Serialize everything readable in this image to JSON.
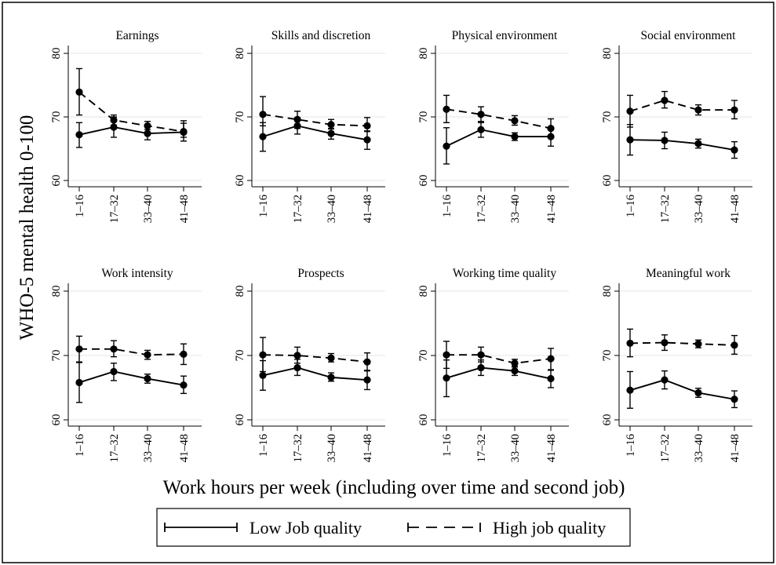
{
  "figure": {
    "ylabel": "WHO-5 mental health 0-100",
    "xlabel": "Work hours per week (including over time and second job)",
    "legend": [
      {
        "name": "Low Job quality",
        "style": "solid"
      },
      {
        "name": "High job quality",
        "style": "dashed"
      }
    ]
  },
  "chart_data": [
    {
      "type": "line",
      "title": "Earnings",
      "categories": [
        "1–16",
        "17–32",
        "33–40",
        "41–48"
      ],
      "ylim": [
        60,
        80
      ],
      "yticks": [
        "60",
        "70",
        "80"
      ],
      "series": [
        {
          "name": "Low Job quality",
          "values": [
            67.2,
            68.4,
            67.4,
            67.6
          ],
          "ci_low": [
            65.2,
            66.8,
            66.4,
            66.2
          ],
          "ci_high": [
            69.1,
            70.0,
            68.5,
            69.0
          ]
        },
        {
          "name": "High job quality",
          "values": [
            73.9,
            69.5,
            68.6,
            67.7
          ],
          "ci_low": [
            70.3,
            68.7,
            68.0,
            66.8
          ],
          "ci_high": [
            77.6,
            70.3,
            69.3,
            69.4
          ]
        }
      ]
    },
    {
      "type": "line",
      "title": "Skills and discretion",
      "categories": [
        "1–16",
        "17–32",
        "33–40",
        "41–48"
      ],
      "ylim": [
        60,
        80
      ],
      "yticks": [
        "60",
        "70",
        "80"
      ],
      "series": [
        {
          "name": "Low Job quality",
          "values": [
            66.9,
            68.6,
            67.4,
            66.4
          ],
          "ci_low": [
            64.6,
            67.3,
            66.5,
            64.9
          ],
          "ci_high": [
            69.1,
            69.9,
            68.2,
            67.8
          ]
        },
        {
          "name": "High job quality",
          "values": [
            70.4,
            69.6,
            68.8,
            68.6
          ],
          "ci_low": [
            68.6,
            68.2,
            68.1,
            67.7
          ],
          "ci_high": [
            73.2,
            70.9,
            69.6,
            69.9
          ]
        }
      ]
    },
    {
      "type": "line",
      "title": "Physical environment",
      "categories": [
        "1–16",
        "17–32",
        "33–40",
        "41–48"
      ],
      "ylim": [
        60,
        80
      ],
      "yticks": [
        "60",
        "70",
        "80"
      ],
      "series": [
        {
          "name": "Low Job quality",
          "values": [
            65.4,
            68.0,
            66.9,
            66.9
          ],
          "ci_low": [
            62.6,
            66.8,
            66.3,
            65.4
          ],
          "ci_high": [
            68.3,
            69.3,
            67.5,
            68.1
          ]
        },
        {
          "name": "High job quality",
          "values": [
            71.2,
            70.4,
            69.4,
            68.2
          ],
          "ci_low": [
            69.1,
            69.1,
            68.7,
            67.1
          ],
          "ci_high": [
            73.4,
            71.6,
            70.2,
            69.7
          ]
        }
      ]
    },
    {
      "type": "line",
      "title": "Social environment",
      "categories": [
        "1–16",
        "17–32",
        "33–40",
        "41–48"
      ],
      "ylim": [
        60,
        80
      ],
      "yticks": [
        "60",
        "70",
        "80"
      ],
      "series": [
        {
          "name": "Low Job quality",
          "values": [
            66.4,
            66.3,
            65.8,
            64.8
          ],
          "ci_low": [
            64.0,
            65.0,
            65.1,
            63.5
          ],
          "ci_high": [
            68.8,
            67.6,
            66.5,
            66.1
          ]
        },
        {
          "name": "High job quality",
          "values": [
            70.9,
            72.6,
            71.1,
            71.1
          ],
          "ci_low": [
            68.4,
            71.4,
            70.3,
            69.7
          ],
          "ci_high": [
            73.4,
            74.0,
            71.9,
            72.6
          ]
        }
      ]
    },
    {
      "type": "line",
      "title": "Work intensity",
      "categories": [
        "1–16",
        "17–32",
        "33–40",
        "41–48"
      ],
      "ylim": [
        60,
        80
      ],
      "yticks": [
        "60",
        "70",
        "80"
      ],
      "series": [
        {
          "name": "Low Job quality",
          "values": [
            65.8,
            67.5,
            66.4,
            65.4
          ],
          "ci_low": [
            62.7,
            66.1,
            65.7,
            64.1
          ],
          "ci_high": [
            68.9,
            68.8,
            67.1,
            66.8
          ]
        },
        {
          "name": "High job quality",
          "values": [
            71.0,
            71.0,
            70.1,
            70.2
          ],
          "ci_low": [
            69.0,
            69.8,
            69.4,
            68.6
          ],
          "ci_high": [
            73.0,
            72.3,
            70.8,
            71.8
          ]
        }
      ]
    },
    {
      "type": "line",
      "title": "Prospects",
      "categories": [
        "1–16",
        "17–32",
        "33–40",
        "41–48"
      ],
      "ylim": [
        60,
        80
      ],
      "yticks": [
        "60",
        "70",
        "80"
      ],
      "series": [
        {
          "name": "Low Job quality",
          "values": [
            66.9,
            68.1,
            66.6,
            66.2
          ],
          "ci_low": [
            64.6,
            66.9,
            66.0,
            64.7
          ],
          "ci_high": [
            69.2,
            69.4,
            67.3,
            67.6
          ]
        },
        {
          "name": "High job quality",
          "values": [
            70.1,
            70.0,
            69.6,
            69.0
          ],
          "ci_low": [
            67.5,
            68.8,
            69.0,
            67.7
          ],
          "ci_high": [
            72.8,
            71.3,
            70.3,
            70.4
          ]
        }
      ]
    },
    {
      "type": "line",
      "title": "Working time quality",
      "categories": [
        "1–16",
        "17–32",
        "33–40",
        "41–48"
      ],
      "ylim": [
        60,
        80
      ],
      "yticks": [
        "60",
        "70",
        "80"
      ],
      "series": [
        {
          "name": "Low Job quality",
          "values": [
            66.5,
            68.1,
            67.6,
            66.4
          ],
          "ci_low": [
            63.6,
            66.9,
            66.9,
            65.0
          ],
          "ci_high": [
            69.3,
            69.3,
            68.3,
            67.7
          ]
        },
        {
          "name": "High job quality",
          "values": [
            70.1,
            70.1,
            68.8,
            69.5
          ],
          "ci_low": [
            68.0,
            69.0,
            68.2,
            67.8
          ],
          "ci_high": [
            72.2,
            71.3,
            69.4,
            71.1
          ]
        }
      ]
    },
    {
      "type": "line",
      "title": "Meaningful work",
      "categories": [
        "1–16",
        "17–32",
        "33–40",
        "41–48"
      ],
      "ylim": [
        60,
        80
      ],
      "yticks": [
        "60",
        "70",
        "80"
      ],
      "series": [
        {
          "name": "Low Job quality",
          "values": [
            64.6,
            66.2,
            64.2,
            63.2
          ],
          "ci_low": [
            61.8,
            64.8,
            63.5,
            61.9
          ],
          "ci_high": [
            67.5,
            67.6,
            64.9,
            64.5
          ]
        },
        {
          "name": "High job quality",
          "values": [
            71.9,
            72.0,
            71.8,
            71.6
          ],
          "ci_low": [
            69.8,
            70.8,
            71.2,
            70.2
          ],
          "ci_high": [
            74.1,
            73.2,
            72.4,
            73.1
          ]
        }
      ]
    }
  ]
}
